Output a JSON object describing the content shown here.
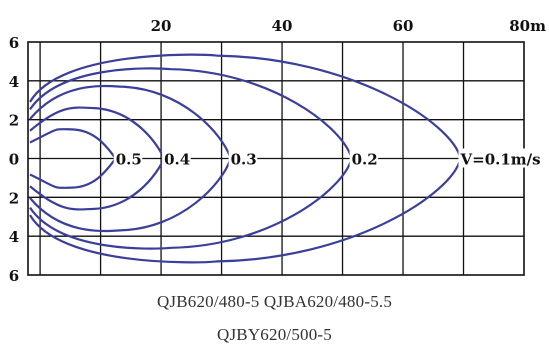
{
  "chart_data": {
    "type": "contour",
    "title": "",
    "x_unit": "m",
    "x_ticks": [
      {
        "value": 20,
        "label": "20"
      },
      {
        "value": 40,
        "label": "40"
      },
      {
        "value": 60,
        "label": "60"
      },
      {
        "value": 80,
        "label": "80m"
      }
    ],
    "y_ticks": [
      {
        "value": 6,
        "label": "6"
      },
      {
        "value": 4,
        "label": "4"
      },
      {
        "value": 2,
        "label": "2"
      },
      {
        "value": 0,
        "label": "0"
      },
      {
        "value": -2,
        "label": "2"
      },
      {
        "value": -4,
        "label": "4"
      },
      {
        "value": -6,
        "label": "6"
      }
    ],
    "xlim": [
      -2,
      80
    ],
    "ylim": [
      -6,
      6
    ],
    "grid": true,
    "contour_color": "#3a3f9a",
    "contours": [
      {
        "label": "0.5",
        "x_tip": 12.5,
        "outer_x": [
          0,
          12.5
        ],
        "half_width": 1.5
      },
      {
        "label": "0.4",
        "x_tip": 20.5,
        "outer_x": [
          0,
          20.5
        ],
        "half_width": 2.6
      },
      {
        "label": "0.3",
        "x_tip": 31.5,
        "outer_x": [
          0,
          31.5
        ],
        "half_width": 3.7
      },
      {
        "label": "0.2",
        "x_tip": 51.5,
        "outer_x": [
          0,
          51.5
        ],
        "half_width": 4.6
      },
      {
        "label": "V=0.1m/s",
        "x_tip": 69.5,
        "outer_x": [
          0,
          69.5
        ],
        "half_width": 5.3
      }
    ]
  },
  "captions": {
    "line1": "QJB620/480-5  QJBA620/480-5.5",
    "line2": "QJBY620/500-5"
  }
}
